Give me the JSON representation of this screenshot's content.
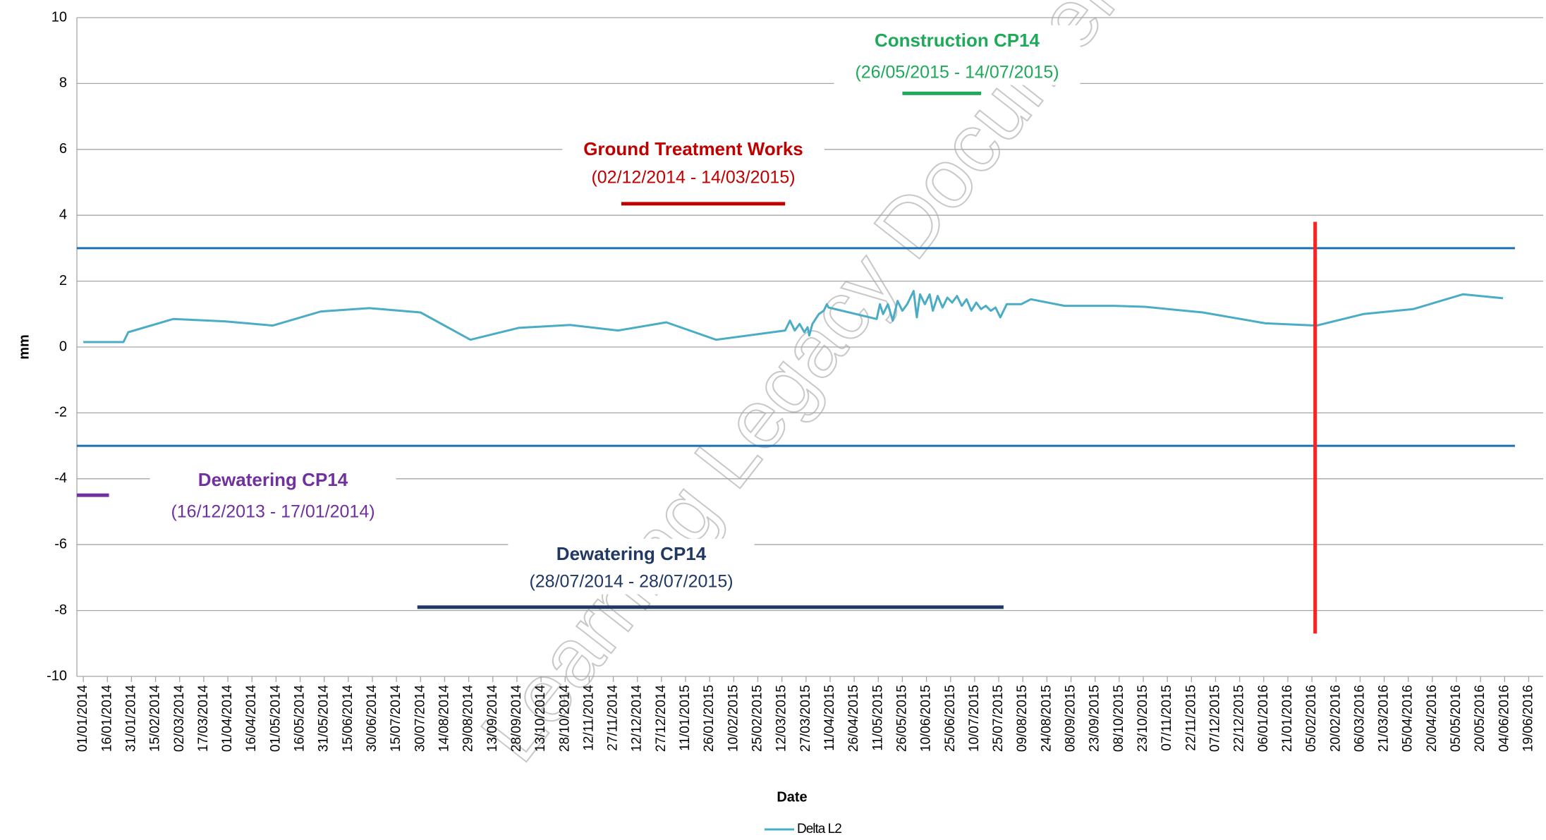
{
  "chart_data": {
    "type": "line",
    "y_label": "mm",
    "x_label": "Date",
    "watermark": "Learning Legacy Document",
    "xlim": [
      "28/12/2013",
      "28/06/2016"
    ],
    "ylim": [
      -10,
      10
    ],
    "yticks": [
      -10,
      -8,
      -6,
      -4,
      -2,
      0,
      2,
      4,
      6,
      8,
      10
    ],
    "xticks": [
      "01/01/2014",
      "16/01/2014",
      "31/01/2014",
      "15/02/2014",
      "02/03/2014",
      "17/03/2014",
      "01/04/2014",
      "16/04/2014",
      "01/05/2014",
      "16/05/2014",
      "31/05/2014",
      "15/06/2014",
      "30/06/2014",
      "15/07/2014",
      "30/07/2014",
      "14/08/2014",
      "29/08/2014",
      "13/09/2014",
      "28/09/2014",
      "13/10/2014",
      "28/10/2014",
      "12/11/2014",
      "27/11/2014",
      "12/12/2014",
      "27/12/2014",
      "11/01/2015",
      "26/01/2015",
      "10/02/2015",
      "25/02/2015",
      "12/03/2015",
      "27/03/2015",
      "11/04/2015",
      "26/04/2015",
      "11/05/2015",
      "26/05/2015",
      "10/06/2015",
      "25/06/2015",
      "10/07/2015",
      "25/07/2015",
      "09/08/2015",
      "24/08/2015",
      "08/09/2015",
      "23/09/2015",
      "08/10/2015",
      "23/10/2015",
      "07/11/2015",
      "22/11/2015",
      "07/12/2015",
      "22/12/2015",
      "06/01/2016",
      "21/01/2016",
      "05/02/2016",
      "20/02/2016",
      "06/03/2016",
      "21/03/2016",
      "05/04/2016",
      "20/04/2016",
      "05/05/2016",
      "20/05/2016",
      "04/06/2016",
      "19/06/2016"
    ],
    "grid": true,
    "legend": "bottom",
    "x": [
      "01/01/2014",
      "26/01/2014",
      "29/01/2014",
      "26/02/2014",
      "30/03/2014",
      "29/04/2014",
      "29/05/2014",
      "28/06/2014",
      "30/07/2014",
      "30/08/2014",
      "29/09/2014",
      "31/10/2014",
      "30/11/2014",
      "30/12/2014",
      "30/01/2015",
      "14/03/2015",
      "17/03/2015",
      "20/03/2015",
      "23/03/2015",
      "26/03/2015",
      "28/03/2015",
      "29/03/2015",
      "31/03/2015",
      "04/04/2015",
      "07/04/2015",
      "09/04/2015",
      "10/04/2015",
      "10/05/2015",
      "12/05/2015",
      "14/05/2015",
      "17/05/2015",
      "20/05/2015",
      "23/05/2015",
      "26/05/2015",
      "29/05/2015",
      "02/06/2015",
      "04/06/2015",
      "06/06/2015",
      "09/06/2015",
      "12/06/2015",
      "14/06/2015",
      "17/06/2015",
      "20/06/2015",
      "23/06/2015",
      "26/06/2015",
      "29/06/2015",
      "02/07/2015",
      "05/07/2015",
      "08/07/2015",
      "11/07/2015",
      "14/07/2015",
      "17/07/2015",
      "20/07/2015",
      "23/07/2015",
      "26/07/2015",
      "30/07/2015",
      "08/08/2015",
      "14/08/2015",
      "04/09/2015",
      "05/10/2015",
      "24/10/2015",
      "29/11/2015",
      "07/01/2016",
      "08/02/2016",
      "08/03/2016",
      "08/04/2016",
      "09/05/2016",
      "03/06/2016"
    ],
    "series": [
      {
        "name": "Delta L2",
        "color": "#4bacc6",
        "values": [
          0.15,
          0.15,
          0.45,
          0.85,
          0.78,
          0.65,
          1.08,
          1.18,
          1.05,
          0.22,
          0.58,
          0.67,
          0.5,
          0.75,
          0.22,
          0.5,
          0.8,
          0.5,
          0.7,
          0.45,
          0.6,
          0.35,
          0.7,
          1.0,
          1.1,
          1.3,
          1.2,
          0.85,
          1.3,
          1.0,
          1.3,
          0.8,
          1.4,
          1.1,
          1.3,
          1.7,
          0.9,
          1.6,
          1.3,
          1.6,
          1.1,
          1.55,
          1.2,
          1.5,
          1.35,
          1.55,
          1.25,
          1.45,
          1.1,
          1.35,
          1.15,
          1.25,
          1.1,
          1.2,
          0.9,
          1.3,
          1.3,
          1.45,
          1.25,
          1.25,
          1.22,
          1.05,
          0.72,
          0.65,
          1.0,
          1.15,
          1.6,
          1.48
        ]
      }
    ],
    "thresholds": [
      {
        "value": 3,
        "color": "#1f6fb5"
      },
      {
        "value": -3,
        "color": "#1f6fb5"
      }
    ],
    "marker_line": {
      "date": "07/02/2016",
      "from": 3.8,
      "to": -8.7,
      "color": "#ff2020"
    },
    "annotations": [
      {
        "title": "Construction CP14",
        "period": "(26/05/2015 - 14/07/2015)",
        "start": "26/05/2015",
        "end": "14/07/2015",
        "y": 7.7,
        "color": "#1faa59"
      },
      {
        "title": "Ground Treatment Works",
        "period": "(02/12/2014 - 14/03/2015)",
        "start": "02/12/2014",
        "end": "14/03/2015",
        "y": 4.35,
        "color": "#c00000"
      },
      {
        "title": "Dewatering CP14",
        "period": "(16/12/2013 - 17/01/2014)",
        "start": "16/12/2013",
        "end": "17/01/2014",
        "y": -4.5,
        "color": "#7030a0"
      },
      {
        "title": "Dewatering CP14",
        "period": "(28/07/2014 - 28/07/2015)",
        "start": "28/07/2014",
        "end": "28/07/2015",
        "y": -7.9,
        "color": "#1f3864"
      }
    ]
  }
}
